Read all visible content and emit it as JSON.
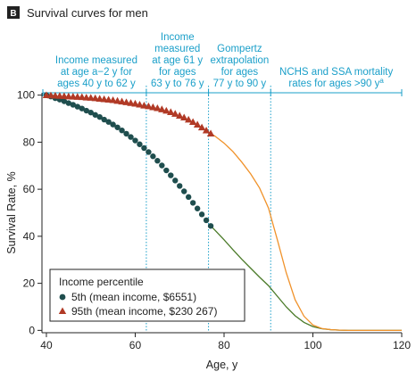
{
  "panel": {
    "letter": "B",
    "title": "Survival curves for men"
  },
  "colors": {
    "accent": "#1a9fc9",
    "series_5th_marker": "#1f4e4e",
    "series_5th_line": "#4a7a28",
    "series_95th_marker": "#b13a26",
    "series_95th_line": "#f0922a"
  },
  "band_labels": [
    {
      "lines": [
        "Income measured",
        "at age a−2 y for",
        "ages 40 y to 62 y"
      ],
      "span": [
        40,
        62.5
      ]
    },
    {
      "lines": [
        "Income",
        "measured",
        "at age 61 y",
        "for ages",
        "63 y to 76 y"
      ],
      "span": [
        62.5,
        76.5
      ]
    },
    {
      "lines": [
        "Gompertz",
        "extrapolation",
        "for ages",
        "77 y to 90 y"
      ],
      "span": [
        76.5,
        90.5
      ]
    },
    {
      "lines": [
        "NCHS and SSA mortality",
        "rates for ages >90 y"
      ],
      "superscript": "a",
      "span": [
        90.5,
        120
      ]
    }
  ],
  "legend": {
    "title": "Income percentile",
    "items": [
      {
        "label": "5th (mean income, $6551)",
        "marker": "circle"
      },
      {
        "label": "95th (mean income, $230 267)",
        "marker": "triangle"
      }
    ]
  },
  "chart_data": {
    "type": "line",
    "title": "Survival curves for men",
    "xlabel": "Age, y",
    "ylabel": "Survival Rate, %",
    "xlim": [
      39,
      120
    ],
    "ylim": [
      -1,
      101
    ],
    "xticks": [
      40,
      60,
      80,
      100,
      120
    ],
    "yticks": [
      0,
      20,
      40,
      60,
      80,
      100
    ],
    "grid": false,
    "legend_position": "bottom-left",
    "dividers": [
      62.5,
      76.5,
      90.5
    ],
    "series": [
      {
        "name": "5th (mean income, $6551)",
        "marker": "circle",
        "x": [
          40,
          41,
          42,
          43,
          44,
          45,
          46,
          47,
          48,
          49,
          50,
          51,
          52,
          53,
          54,
          55,
          56,
          57,
          58,
          59,
          60,
          61,
          62,
          63,
          64,
          65,
          66,
          67,
          68,
          69,
          70,
          71,
          72,
          73,
          74,
          75,
          76,
          77
        ],
        "y": [
          100,
          99.4,
          98.7,
          98.1,
          97.4,
          96.6,
          95.9,
          95.1,
          94.3,
          93.4,
          92.6,
          91.6,
          90.7,
          89.6,
          88.6,
          87.5,
          86.3,
          85.0,
          83.6,
          82.2,
          80.7,
          79.1,
          77.5,
          75.8,
          74.0,
          72.1,
          70.1,
          68.0,
          65.9,
          63.7,
          61.4,
          59.1,
          56.7,
          54.2,
          51.8,
          49.3,
          46.8,
          44.4
        ],
        "extension": {
          "x": [
            77,
            78,
            80,
            82,
            84,
            86,
            88,
            90,
            92,
            94,
            96,
            98,
            100,
            102,
            104,
            106,
            108,
            110,
            115,
            120
          ],
          "y": [
            44.4,
            42.5,
            38.5,
            34.3,
            30.2,
            26.4,
            22.6,
            19.0,
            14.5,
            10.0,
            6.2,
            3.4,
            1.6,
            0.7,
            0.3,
            0.1,
            0,
            0,
            0,
            0
          ]
        }
      },
      {
        "name": "95th (mean income, $230 267)",
        "marker": "triangle",
        "x": [
          40,
          41,
          42,
          43,
          44,
          45,
          46,
          47,
          48,
          49,
          50,
          51,
          52,
          53,
          54,
          55,
          56,
          57,
          58,
          59,
          60,
          61,
          62,
          63,
          64,
          65,
          66,
          67,
          68,
          69,
          70,
          71,
          72,
          73,
          74,
          75,
          76,
          77
        ],
        "y": [
          100,
          99.9,
          99.8,
          99.7,
          99.6,
          99.5,
          99.4,
          99.3,
          99.2,
          99.0,
          98.9,
          98.7,
          98.5,
          98.3,
          98.1,
          97.9,
          97.6,
          97.3,
          97.0,
          96.7,
          96.4,
          96.0,
          95.6,
          95.3,
          94.9,
          94.5,
          94.0,
          93.4,
          92.8,
          92.1,
          91.3,
          90.5,
          89.6,
          88.6,
          87.5,
          86.3,
          85.0,
          83.7
        ],
        "extension": {
          "x": [
            77,
            78,
            80,
            82,
            84,
            86,
            88,
            90,
            92,
            94,
            96,
            98,
            100,
            102,
            104,
            106,
            108,
            110,
            115,
            120
          ],
          "y": [
            83.7,
            82.5,
            79.6,
            76.0,
            71.5,
            66.5,
            60.5,
            52.0,
            38.5,
            24.5,
            13.0,
            6.0,
            2.3,
            0.8,
            0.3,
            0.1,
            0,
            0,
            0,
            0
          ]
        }
      }
    ]
  }
}
